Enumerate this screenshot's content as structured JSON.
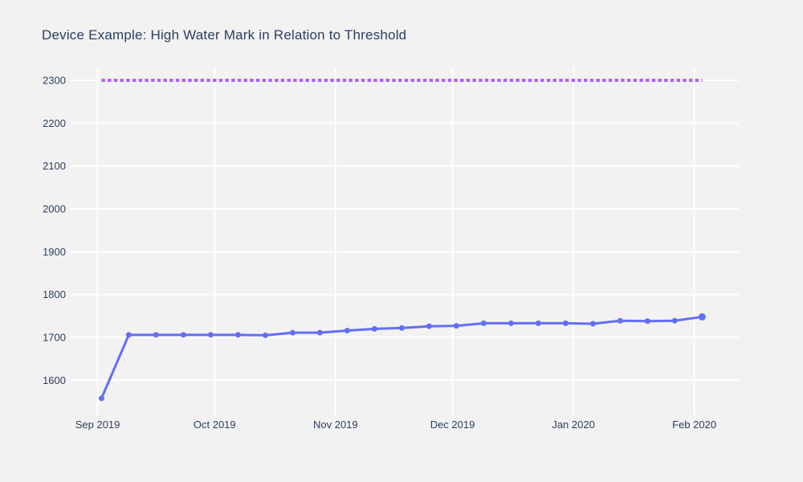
{
  "chart_data": {
    "type": "line",
    "title": "Device Example: High Water Mark in Relation to Threshold",
    "xlabel": "",
    "ylabel": "",
    "grid": true,
    "legend_position": "none",
    "y_ticks": [
      1600,
      1700,
      1800,
      1900,
      2000,
      2100,
      2200,
      2300
    ],
    "y_range": [
      1522,
      2328
    ],
    "x_range_days": [
      -6.5,
      164.4
    ],
    "x_ticks": [
      {
        "t": 0,
        "label": "Sep 2019"
      },
      {
        "t": 30,
        "label": "Oct 2019"
      },
      {
        "t": 61,
        "label": "Nov 2019"
      },
      {
        "t": 91,
        "label": "Dec 2019"
      },
      {
        "t": 122,
        "label": "Jan 2020"
      },
      {
        "t": 153,
        "label": "Feb 2020"
      }
    ],
    "threshold": {
      "name": "Threshold",
      "value": 2300,
      "style": "dotted",
      "color": "#ab63fa"
    },
    "series": [
      {
        "name": "High Water Mark",
        "color": "#636efa",
        "marker": "circle",
        "points": [
          {
            "date": "2019-09-02",
            "t": 1,
            "value": 1558
          },
          {
            "date": "2019-09-09",
            "t": 8,
            "value": 1706
          },
          {
            "date": "2019-09-16",
            "t": 15,
            "value": 1706
          },
          {
            "date": "2019-09-23",
            "t": 22,
            "value": 1706
          },
          {
            "date": "2019-09-30",
            "t": 29,
            "value": 1706
          },
          {
            "date": "2019-10-07",
            "t": 36,
            "value": 1706
          },
          {
            "date": "2019-10-14",
            "t": 43,
            "value": 1705
          },
          {
            "date": "2019-10-21",
            "t": 50,
            "value": 1711
          },
          {
            "date": "2019-10-28",
            "t": 57,
            "value": 1711
          },
          {
            "date": "2019-11-04",
            "t": 64,
            "value": 1716
          },
          {
            "date": "2019-11-11",
            "t": 71,
            "value": 1720
          },
          {
            "date": "2019-11-18",
            "t": 78,
            "value": 1722
          },
          {
            "date": "2019-11-25",
            "t": 85,
            "value": 1726
          },
          {
            "date": "2019-12-02",
            "t": 92,
            "value": 1727
          },
          {
            "date": "2019-12-09",
            "t": 99,
            "value": 1733
          },
          {
            "date": "2019-12-16",
            "t": 106,
            "value": 1733
          },
          {
            "date": "2019-12-23",
            "t": 113,
            "value": 1733
          },
          {
            "date": "2019-12-30",
            "t": 120,
            "value": 1733
          },
          {
            "date": "2020-01-06",
            "t": 127,
            "value": 1732
          },
          {
            "date": "2020-01-13",
            "t": 134,
            "value": 1739
          },
          {
            "date": "2020-01-20",
            "t": 141,
            "value": 1738
          },
          {
            "date": "2020-01-27",
            "t": 148,
            "value": 1739
          },
          {
            "date": "2020-02-03",
            "t": 155,
            "value": 1748
          }
        ]
      }
    ],
    "colors": {
      "background": "#f2f2f2",
      "gridline": "#ffffff",
      "text": "#2a3f5f",
      "line": "#636efa",
      "threshold": "#ab63fa"
    }
  }
}
